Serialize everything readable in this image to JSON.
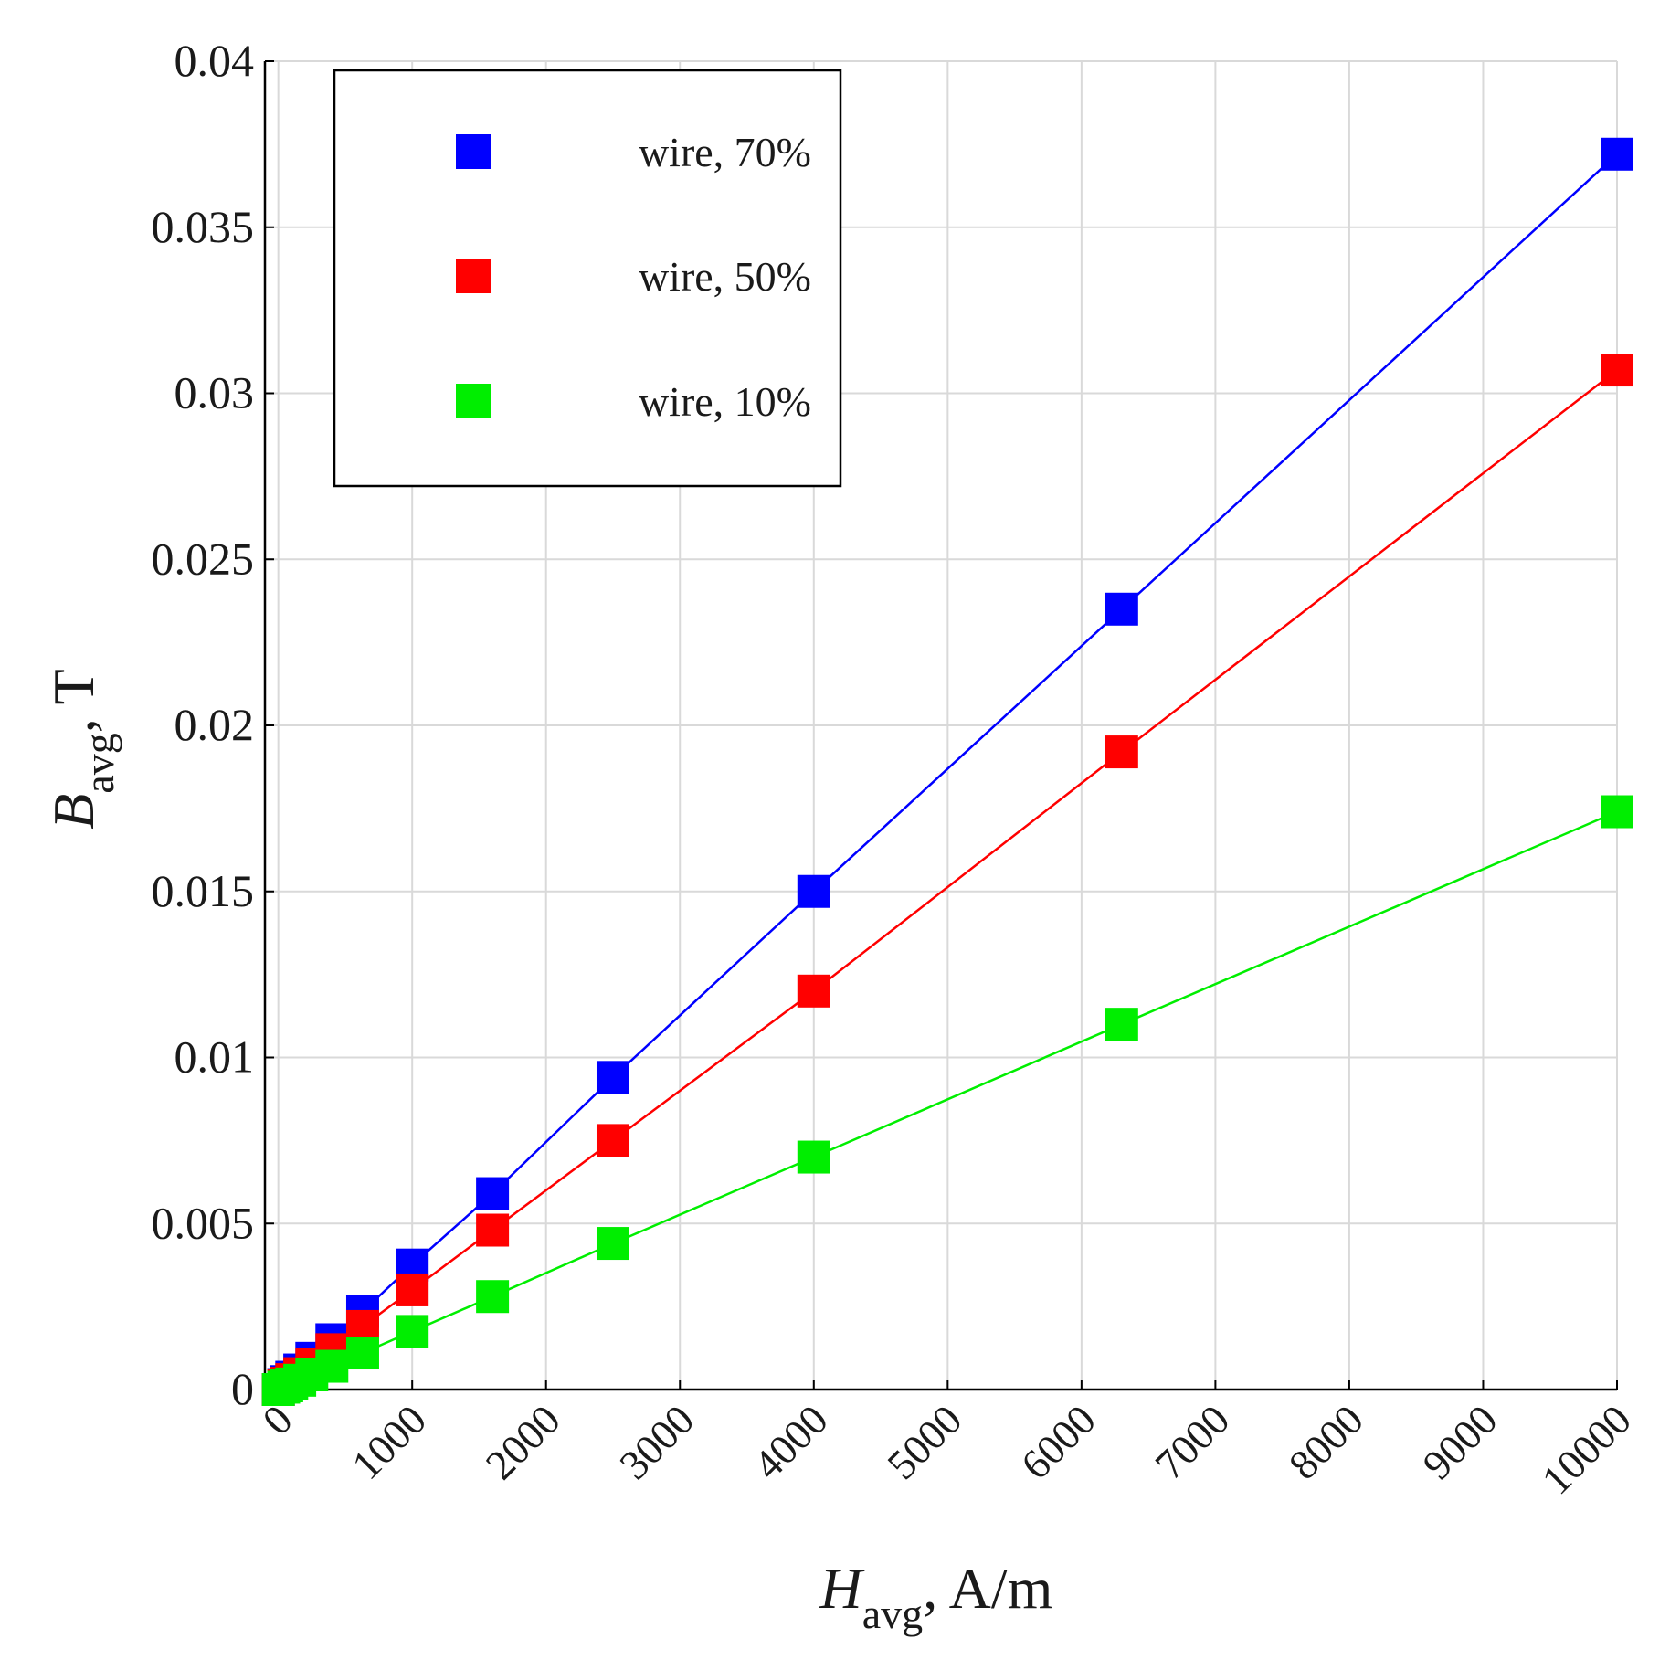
{
  "chart_data": {
    "type": "line",
    "markers": "square",
    "x": [
      0,
      40,
      63,
      100,
      160,
      250,
      400,
      630,
      1000,
      1600,
      2500,
      4000,
      6300,
      10000
    ],
    "series": [
      {
        "name": "wire, 70%",
        "color": "#0000ff",
        "values": [
          0,
          0.00015,
          0.00024,
          0.00037,
          0.00059,
          0.00094,
          0.0015,
          0.00235,
          0.00375,
          0.0059,
          0.0094,
          0.015,
          0.0235,
          0.0372
        ]
      },
      {
        "name": "wire, 50%",
        "color": "#ff0000",
        "values": [
          0,
          0.00012,
          0.00019,
          0.0003,
          0.00048,
          0.00075,
          0.0012,
          0.0019,
          0.003,
          0.0048,
          0.0075,
          0.012,
          0.0192,
          0.0307
        ]
      },
      {
        "name": "wire, 10%",
        "color": "#00ee00",
        "values": [
          0,
          7e-05,
          0.00011,
          0.00017,
          0.00028,
          0.00044,
          0.0007,
          0.0011,
          0.00175,
          0.0028,
          0.0044,
          0.007,
          0.011,
          0.0174
        ]
      }
    ],
    "xlabel": {
      "symbol": "H",
      "subscript": "avg",
      "suffix": ", A/m"
    },
    "ylabel": {
      "symbol": "B",
      "subscript": "avg",
      "suffix": ", T"
    },
    "xlim": [
      -100,
      10000
    ],
    "ylim": [
      0,
      0.04
    ],
    "x_ticks": [
      0,
      1000,
      2000,
      3000,
      4000,
      5000,
      6000,
      7000,
      8000,
      9000,
      10000
    ],
    "x_tick_labels": [
      "0",
      "1000",
      "2000",
      "3000",
      "4000",
      "5000",
      "6000",
      "7000",
      "8000",
      "9000",
      "10000"
    ],
    "y_ticks": [
      0,
      0.005,
      0.01,
      0.015,
      0.02,
      0.025,
      0.03,
      0.035,
      0.04
    ],
    "y_tick_labels": [
      "0",
      "0.005",
      "0.01",
      "0.015",
      "0.02",
      "0.025",
      "0.03",
      "0.035",
      "0.04"
    ],
    "grid": true,
    "legend_position": "top-left"
  }
}
